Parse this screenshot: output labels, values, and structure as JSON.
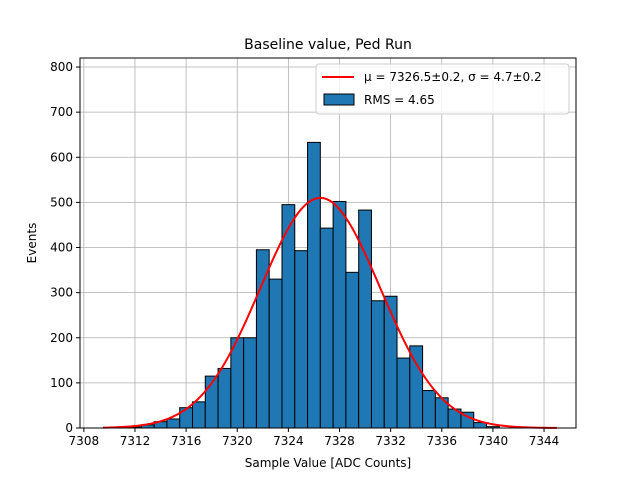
{
  "chart_data": {
    "type": "bar",
    "title": "Baseline value, Ped Run",
    "xlabel": "Sample Value [ADC Counts]",
    "ylabel": "Events",
    "xlim": [
      7307.7,
      7346.5
    ],
    "ylim": [
      0,
      820
    ],
    "xticks": [
      7308,
      7312,
      7316,
      7320,
      7324,
      7328,
      7332,
      7336,
      7340,
      7344
    ],
    "yticks": [
      0,
      100,
      200,
      300,
      400,
      500,
      600,
      700,
      800
    ],
    "grid": true,
    "legend_position": "top-right",
    "bin_width": 1,
    "bins": [
      {
        "x": 7310,
        "value": 0
      },
      {
        "x": 7311,
        "value": 0
      },
      {
        "x": 7312,
        "value": 2
      },
      {
        "x": 7313,
        "value": 7
      },
      {
        "x": 7314,
        "value": 14
      },
      {
        "x": 7315,
        "value": 20
      },
      {
        "x": 7316,
        "value": 45
      },
      {
        "x": 7317,
        "value": 58
      },
      {
        "x": 7318,
        "value": 115
      },
      {
        "x": 7319,
        "value": 132
      },
      {
        "x": 7320,
        "value": 200
      },
      {
        "x": 7321,
        "value": 200
      },
      {
        "x": 7322,
        "value": 395
      },
      {
        "x": 7323,
        "value": 330
      },
      {
        "x": 7324,
        "value": 495
      },
      {
        "x": 7325,
        "value": 393
      },
      {
        "x": 7326,
        "value": 633
      },
      {
        "x": 7327,
        "value": 443
      },
      {
        "x": 7328,
        "value": 502
      },
      {
        "x": 7329,
        "value": 345
      },
      {
        "x": 7330,
        "value": 483
      },
      {
        "x": 7331,
        "value": 282
      },
      {
        "x": 7332,
        "value": 292
      },
      {
        "x": 7333,
        "value": 155
      },
      {
        "x": 7334,
        "value": 182
      },
      {
        "x": 7335,
        "value": 83
      },
      {
        "x": 7336,
        "value": 67
      },
      {
        "x": 7337,
        "value": 42
      },
      {
        "x": 7338,
        "value": 35
      },
      {
        "x": 7339,
        "value": 12
      },
      {
        "x": 7340,
        "value": 3
      }
    ],
    "fit": {
      "mu": 7326.5,
      "sigma": 4.7,
      "peak": 510,
      "x_range": [
        7309.5,
        7345
      ]
    },
    "series": [
      {
        "name": "μ = 7326.5±0.2, σ = 4.7±0.2",
        "kind": "line",
        "color": "#ff0000"
      },
      {
        "name": "RMS = 4.65",
        "kind": "bar",
        "color": "#1f77b4"
      }
    ]
  }
}
